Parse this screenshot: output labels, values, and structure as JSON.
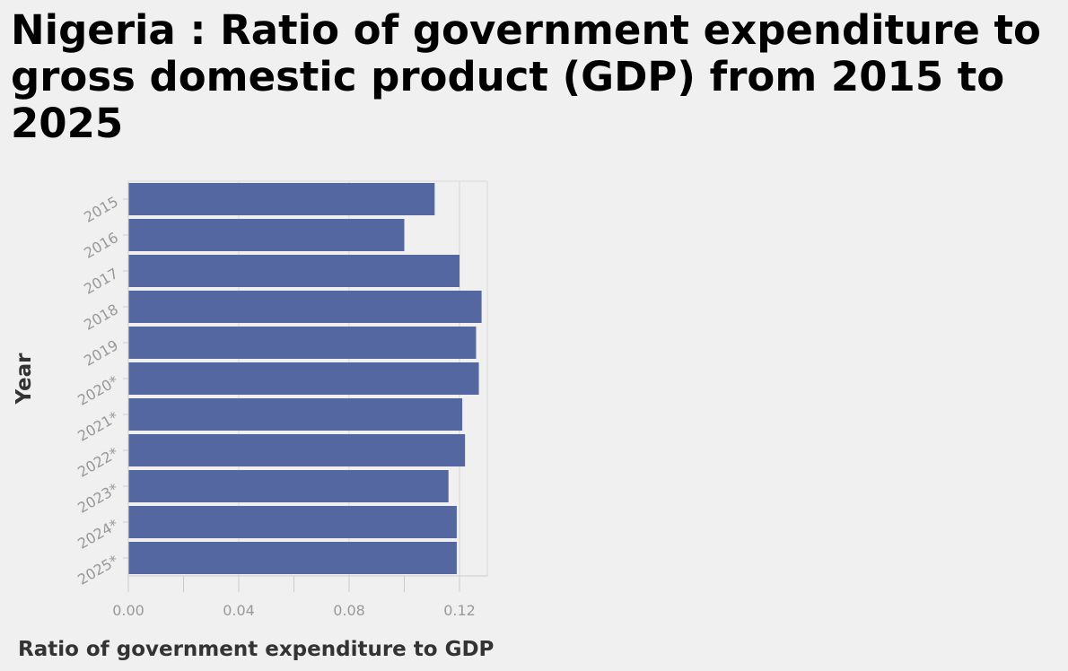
{
  "chart_data": {
    "type": "bar",
    "orientation": "horizontal",
    "title": "Nigeria : Ratio of government expenditure to gross domestic product (GDP) from 2015 to 2025",
    "xlabel": "Ratio of government expenditure to GDP",
    "ylabel": "Year",
    "categories": [
      "2015",
      "2016",
      "2017",
      "2018",
      "2019",
      "2020*",
      "2021*",
      "2022*",
      "2023*",
      "2024*",
      "2025*"
    ],
    "values": [
      0.111,
      0.1,
      0.12,
      0.128,
      0.126,
      0.127,
      0.121,
      0.122,
      0.116,
      0.119,
      0.119
    ],
    "xlim": [
      0,
      0.13
    ],
    "xticks": [
      "0.00",
      "0.04",
      "0.08",
      "0.12"
    ],
    "grid": "vertical",
    "bar_color": "#5467a0",
    "background_color": "#f0f0f0",
    "axis_color": "#cccccc"
  }
}
